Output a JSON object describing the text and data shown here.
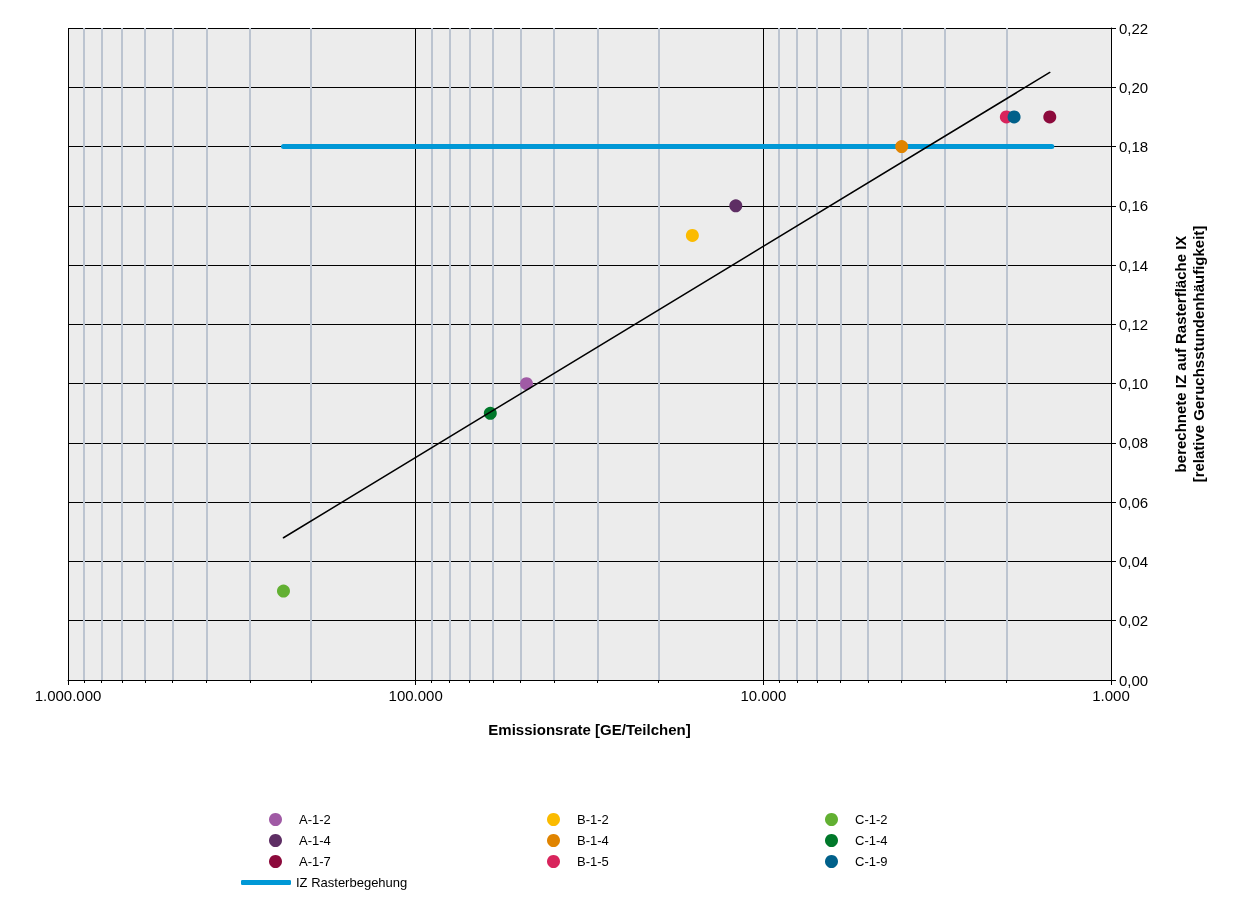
{
  "chart_data": {
    "type": "scatter",
    "xlabel": "Emissionsrate [GE/Teilchen]",
    "ylabel": "berechnete IZ auf Rasterfläche IX\n[relative Geruchsstundenhäufigkeit]",
    "log": "x",
    "xlim": [
      1000000,
      1000
    ],
    "xticks": [
      {
        "value": 1000000,
        "label": "1.000.000"
      },
      {
        "value": 100000,
        "label": "100.000"
      },
      {
        "value": 10000,
        "label": "10.000"
      },
      {
        "value": 1000,
        "label": "1.000"
      }
    ],
    "ylim": [
      0,
      0.22
    ],
    "yticks": [
      {
        "value": 0,
        "label": "0,00"
      },
      {
        "value": 0.02,
        "label": "0,02"
      },
      {
        "value": 0.04,
        "label": "0,04"
      },
      {
        "value": 0.06,
        "label": "0,06"
      },
      {
        "value": 0.08,
        "label": "0,08"
      },
      {
        "value": 0.1,
        "label": "0,10"
      },
      {
        "value": 0.12,
        "label": "0,12"
      },
      {
        "value": 0.14,
        "label": "0,14"
      },
      {
        "value": 0.16,
        "label": "0,16"
      },
      {
        "value": 0.18,
        "label": "0,18"
      },
      {
        "value": 0.2,
        "label": "0,20"
      },
      {
        "value": 0.22,
        "label": "0,22"
      }
    ],
    "grid": true,
    "legend": "bottom",
    "marker": "circle",
    "series": [
      {
        "name": "A-1-2",
        "color": "#a05aa5",
        "x": [
          48000
        ],
        "values": [
          0.1
        ]
      },
      {
        "name": "A-1-4",
        "color": "#5e2e64",
        "x": [
          12000
        ],
        "values": [
          0.16
        ]
      },
      {
        "name": "A-1-7",
        "color": "#8c0a3c",
        "x": [
          1500
        ],
        "values": [
          0.19
        ]
      },
      {
        "name": "B-1-2",
        "color": "#fbbb00",
        "x": [
          16000
        ],
        "values": [
          0.15
        ]
      },
      {
        "name": "B-1-4",
        "color": "#e08400",
        "x": [
          4000
        ],
        "values": [
          0.18
        ]
      },
      {
        "name": "B-1-5",
        "color": "#d8245c",
        "x": [
          2000
        ],
        "values": [
          0.19
        ]
      },
      {
        "name": "C-1-2",
        "color": "#62b032",
        "x": [
          240000
        ],
        "values": [
          0.03
        ]
      },
      {
        "name": "C-1-4",
        "color": "#00782a",
        "x": [
          61000
        ],
        "values": [
          0.09
        ]
      },
      {
        "name": "C-1-9",
        "color": "#00608a",
        "x": [
          1900
        ],
        "values": [
          0.19
        ]
      },
      {
        "name": "IZ Rasterbegehung",
        "type": "line",
        "marker": "none",
        "color": "#0098d6",
        "x": [
          240000,
          1480
        ],
        "values": [
          0.18,
          0.18
        ]
      },
      {
        "type": "line",
        "marker": "none",
        "color": "#000000",
        "x": [
          240000,
          1500
        ],
        "values": [
          0.048,
          0.205
        ]
      }
    ]
  }
}
